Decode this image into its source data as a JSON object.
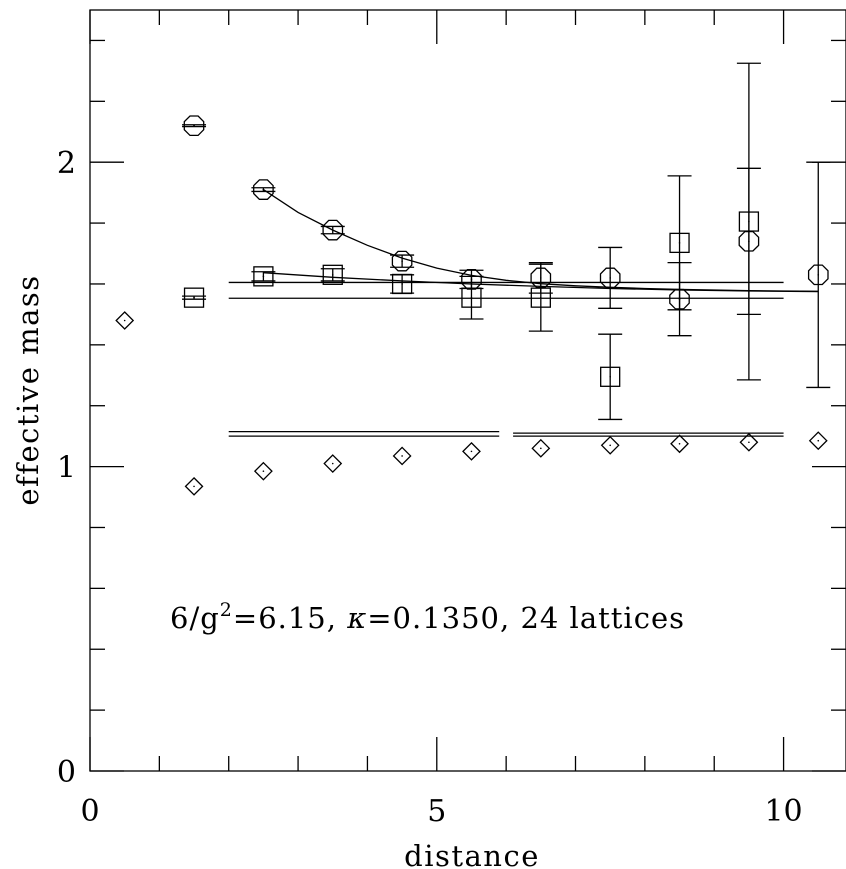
{
  "chart_data": {
    "type": "scatter",
    "xlabel": "distance",
    "ylabel": "effective mass",
    "xlim": [
      0,
      10.9
    ],
    "ylim": [
      0,
      2.5
    ],
    "x_ticks": [
      {
        "value": 0,
        "label": "0"
      },
      {
        "value": 5,
        "label": "5"
      },
      {
        "value": 10,
        "label": "10"
      }
    ],
    "y_ticks": [
      {
        "value": 0,
        "label": "0"
      },
      {
        "value": 1,
        "label": "1"
      },
      {
        "value": 2,
        "label": "2"
      }
    ],
    "annotation": {
      "prefix": "6/g",
      "superscript": "2",
      "rest_before_kappa": "=6.15, ",
      "kappa": "κ",
      "rest_after_kappa": "=0.1350, 24 lattices"
    },
    "series": [
      {
        "marker": "octagon",
        "points": [
          {
            "x": 1.5,
            "y": 2.12,
            "err": 0.003
          },
          {
            "x": 2.5,
            "y": 1.91,
            "err": 0.006
          },
          {
            "x": 3.5,
            "y": 1.777,
            "err": 0.012
          },
          {
            "x": 4.5,
            "y": 1.675,
            "err": 0.02
          },
          {
            "x": 5.5,
            "y": 1.615,
            "err": 0.03
          },
          {
            "x": 6.5,
            "y": 1.62,
            "err": 0.05
          },
          {
            "x": 7.5,
            "y": 1.62,
            "err": 0.1
          },
          {
            "x": 8.5,
            "y": 1.55,
            "err": 0.12
          },
          {
            "x": 9.5,
            "y": 1.74,
            "err": 0.24
          },
          {
            "x": 10.5,
            "y": 1.63,
            "err": 0.37
          }
        ]
      },
      {
        "marker": "square",
        "points": [
          {
            "x": 1.5,
            "y": 1.555,
            "err": 0.005
          },
          {
            "x": 2.5,
            "y": 1.625,
            "err": 0.015
          },
          {
            "x": 3.5,
            "y": 1.63,
            "err": 0.02
          },
          {
            "x": 4.5,
            "y": 1.6,
            "err": 0.03
          },
          {
            "x": 5.5,
            "y": 1.555,
            "err": 0.07
          },
          {
            "x": 6.5,
            "y": 1.555,
            "err": 0.11
          },
          {
            "x": 7.5,
            "y": 1.295,
            "err": 0.14
          },
          {
            "x": 8.5,
            "y": 1.735,
            "err": 0.22
          },
          {
            "x": 9.5,
            "y": 1.805,
            "err": 0.52
          }
        ]
      },
      {
        "marker": "diamond",
        "points": [
          {
            "x": 0.5,
            "y": 1.48,
            "err": 0
          },
          {
            "x": 1.5,
            "y": 0.935,
            "err": 0
          },
          {
            "x": 2.5,
            "y": 0.985,
            "err": 0
          },
          {
            "x": 3.5,
            "y": 1.01,
            "err": 0
          },
          {
            "x": 4.5,
            "y": 1.035,
            "err": 0
          },
          {
            "x": 5.5,
            "y": 1.05,
            "err": 0
          },
          {
            "x": 6.5,
            "y": 1.06,
            "err": 0
          },
          {
            "x": 7.5,
            "y": 1.07,
            "err": 0
          },
          {
            "x": 8.5,
            "y": 1.075,
            "err": 0
          },
          {
            "x": 9.5,
            "y": 1.08,
            "err": 0
          },
          {
            "x": 10.5,
            "y": 1.085,
            "err": 0
          }
        ]
      }
    ],
    "fit_curves": [
      {
        "points": [
          [
            2.5,
            1.91
          ],
          [
            3.0,
            1.835
          ],
          [
            3.5,
            1.777
          ],
          [
            4.0,
            1.727
          ],
          [
            4.5,
            1.685
          ],
          [
            5.0,
            1.652
          ],
          [
            5.5,
            1.628
          ],
          [
            6.0,
            1.612
          ],
          [
            6.5,
            1.601
          ],
          [
            7.0,
            1.594
          ],
          [
            7.5,
            1.589
          ],
          [
            8.0,
            1.585
          ],
          [
            8.5,
            1.582
          ],
          [
            9.0,
            1.58
          ],
          [
            9.5,
            1.578
          ],
          [
            10.0,
            1.577
          ],
          [
            10.5,
            1.576
          ]
        ]
      },
      {
        "points": [
          [
            2.5,
            1.637
          ],
          [
            3.5,
            1.622
          ],
          [
            4.5,
            1.61
          ],
          [
            5.5,
            1.6
          ],
          [
            6.5,
            1.592
          ],
          [
            7.5,
            1.585
          ],
          [
            8.5,
            1.58
          ],
          [
            9.5,
            1.577
          ],
          [
            10.5,
            1.575
          ]
        ]
      }
    ],
    "fit_lines": [
      {
        "x0": 2.0,
        "x1": 10.0,
        "y": 1.605
      },
      {
        "x0": 2.0,
        "x1": 10.0,
        "y": 1.553
      },
      {
        "x0": 2.0,
        "x1": 5.9,
        "y": 1.115
      },
      {
        "x0": 2.0,
        "x1": 5.9,
        "y": 1.1
      },
      {
        "x0": 6.1,
        "x1": 10.0,
        "y": 1.11
      },
      {
        "x0": 6.1,
        "x1": 10.0,
        "y": 1.1
      }
    ]
  }
}
